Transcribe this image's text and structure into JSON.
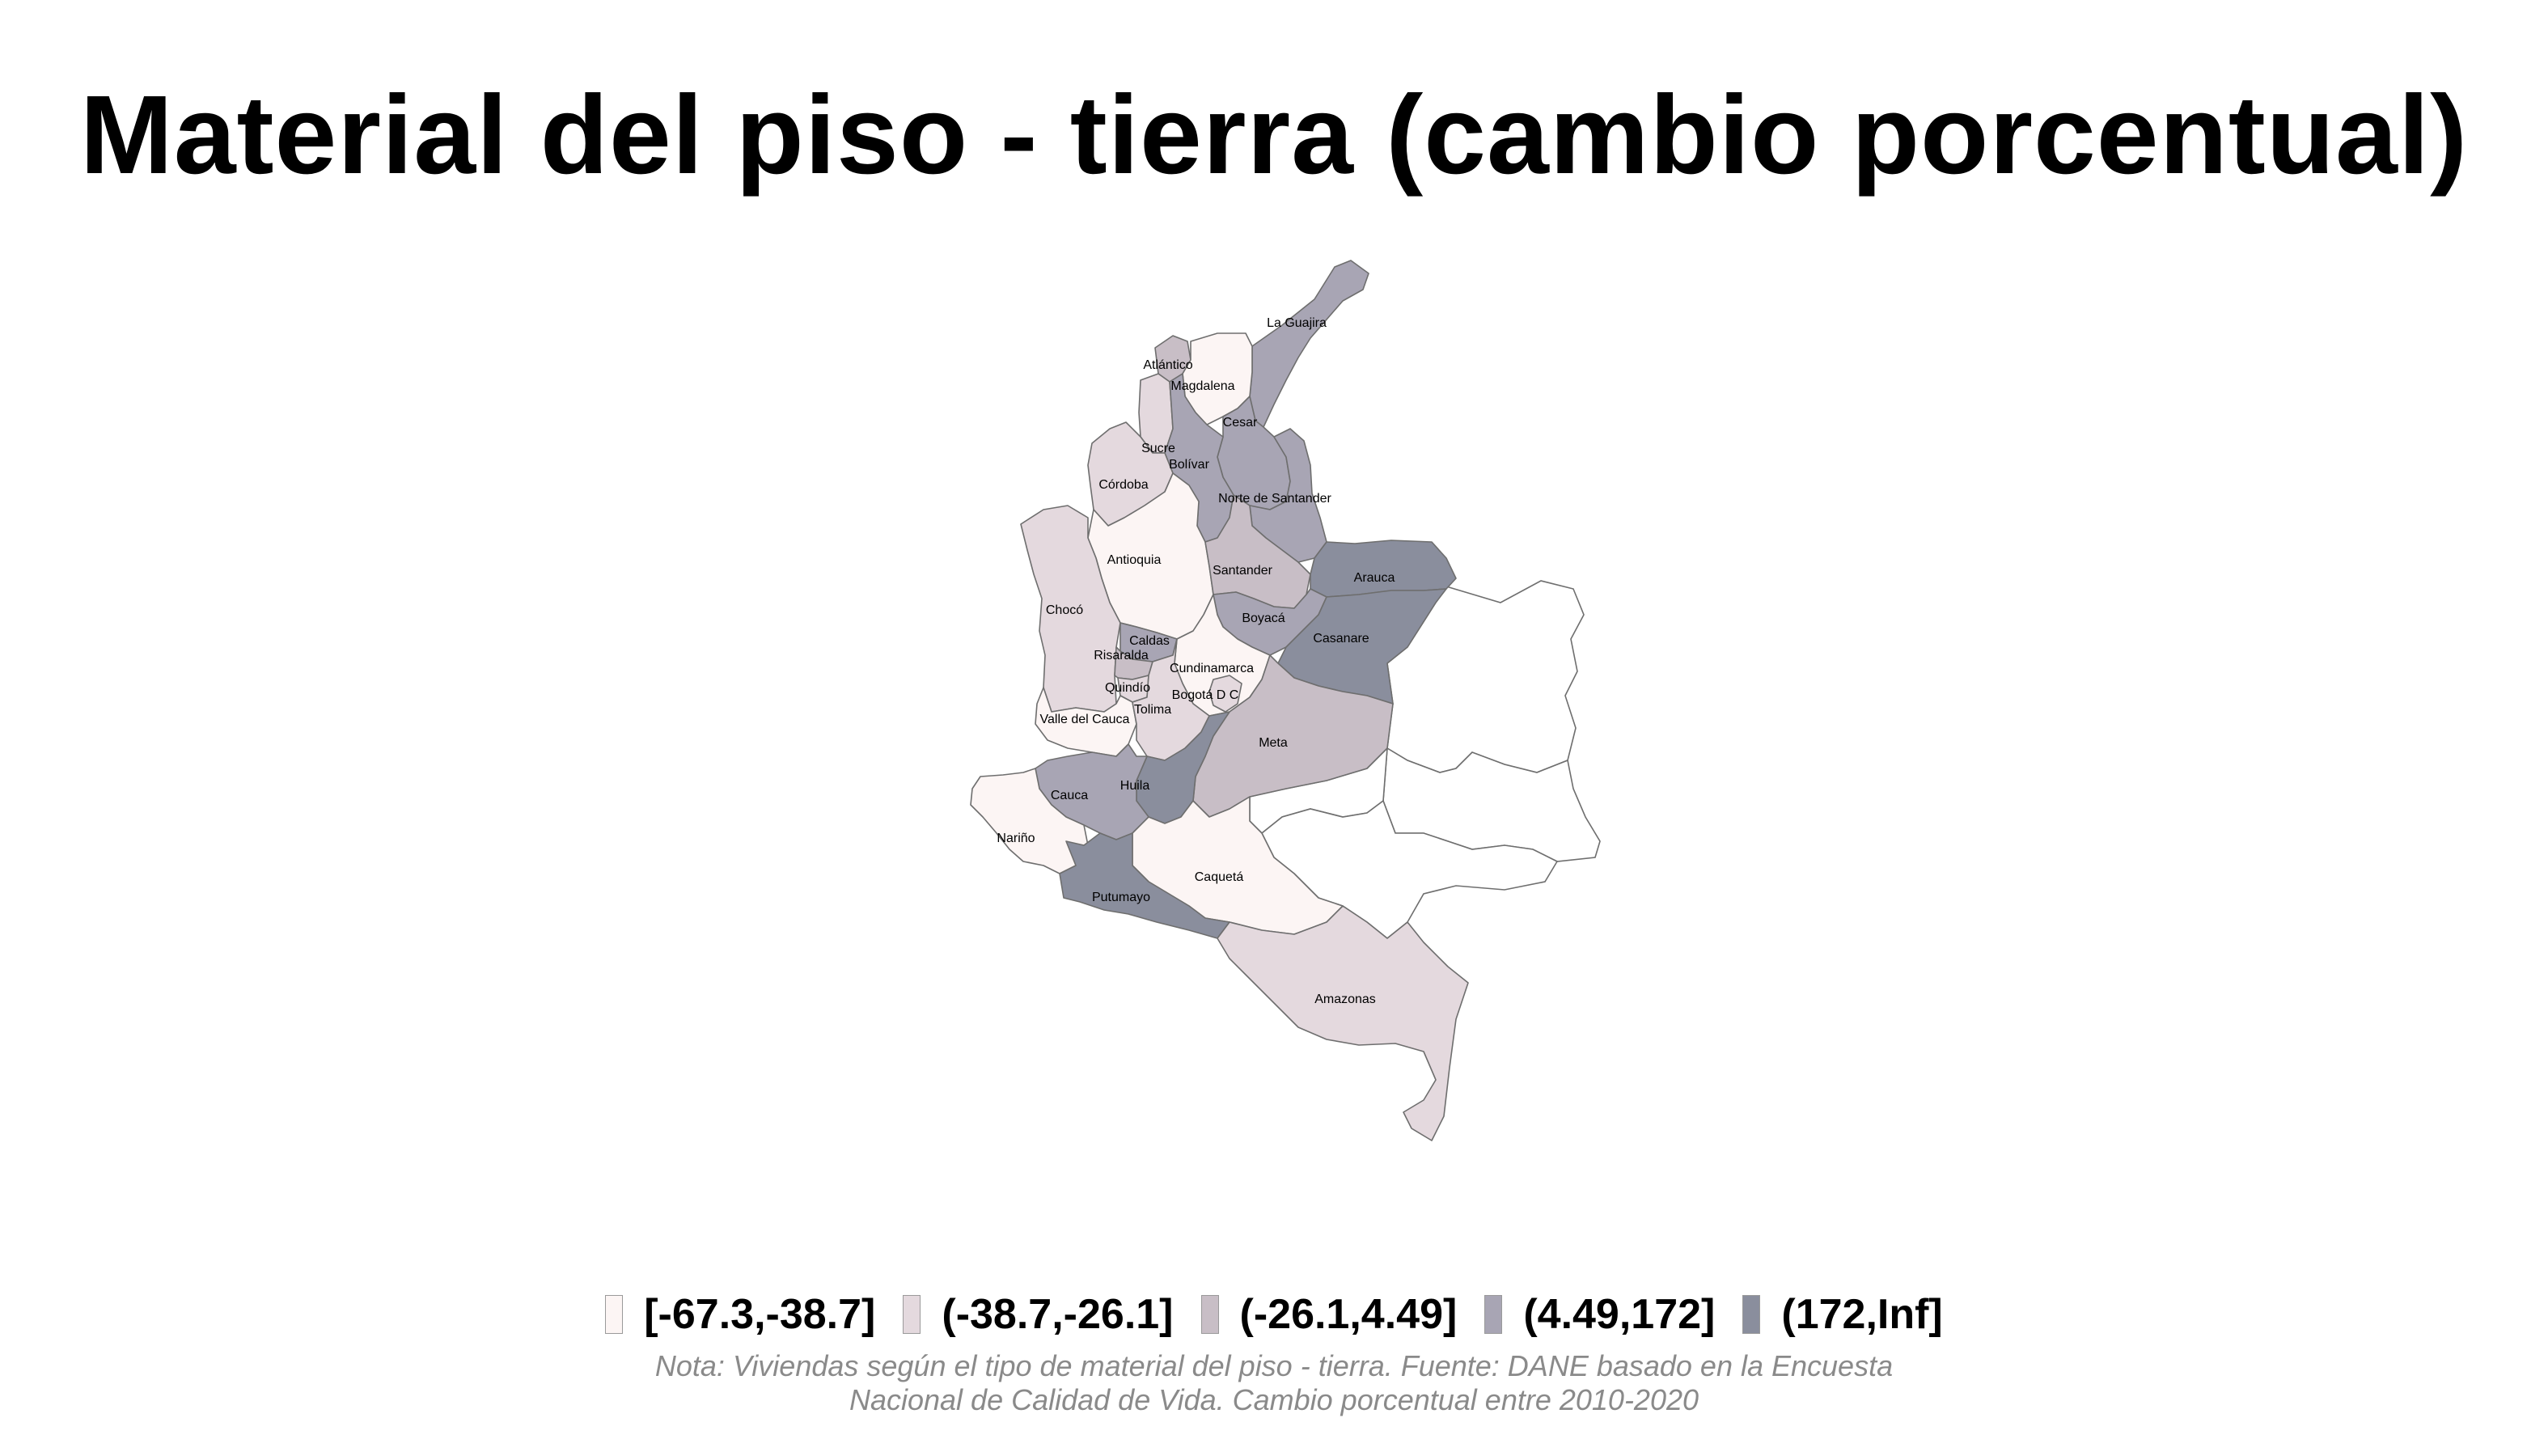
{
  "title": "Material del piso - tierra (cambio porcentual)",
  "colors": {
    "class1": "#fcf5f4",
    "class2": "#e4d9de",
    "class3": "#c8bec6",
    "class4": "#a8a5b4",
    "class5": "#8a8e9d",
    "border": "#6e6e6e"
  },
  "legend": [
    {
      "label": "[-67.3,-38.7]",
      "class": "class1"
    },
    {
      "label": "(-38.7,-26.1]",
      "class": "class2"
    },
    {
      "label": "(-26.1,4.49]",
      "class": "class3"
    },
    {
      "label": "(4.49,172]",
      "class": "class4"
    },
    {
      "label": "(172,Inf]",
      "class": "class5"
    }
  ],
  "departments": [
    {
      "name": "La Guajira",
      "class": "class4"
    },
    {
      "name": "Atlántico",
      "class": "class3"
    },
    {
      "name": "Magdalena",
      "class": "class1"
    },
    {
      "name": "Cesar",
      "class": "class4"
    },
    {
      "name": "Sucre",
      "class": "class2"
    },
    {
      "name": "Bolívar",
      "class": "class4"
    },
    {
      "name": "Córdoba",
      "class": "class2"
    },
    {
      "name": "Norte de Santander",
      "class": "class4"
    },
    {
      "name": "Antioquia",
      "class": "class1"
    },
    {
      "name": "Santander",
      "class": "class3"
    },
    {
      "name": "Arauca",
      "class": "class5"
    },
    {
      "name": "Chocó",
      "class": "class2"
    },
    {
      "name": "Boyacá",
      "class": "class4"
    },
    {
      "name": "Casanare",
      "class": "class5"
    },
    {
      "name": "Caldas",
      "class": "class4"
    },
    {
      "name": "Risaralda",
      "class": "class3"
    },
    {
      "name": "Cundinamarca",
      "class": "class1"
    },
    {
      "name": "Quindío",
      "class": "class2"
    },
    {
      "name": "Bogotá D C",
      "class": "class2"
    },
    {
      "name": "Valle del Cauca",
      "class": "class1"
    },
    {
      "name": "Tolima",
      "class": "class2"
    },
    {
      "name": "Meta",
      "class": "class3"
    },
    {
      "name": "Huila",
      "class": "class5"
    },
    {
      "name": "Cauca",
      "class": "class4"
    },
    {
      "name": "Nariño",
      "class": "class1"
    },
    {
      "name": "Caquetá",
      "class": "class1"
    },
    {
      "name": "Putumayo",
      "class": "class5"
    },
    {
      "name": "Amazonas",
      "class": "class2"
    }
  ],
  "note": {
    "line1": "Nota: Viviendas según el tipo de material del piso - tierra. Fuente: DANE basado en la Encuesta",
    "line2": "Nacional de Calidad de Vida. Cambio porcentual entre 2010-2020"
  }
}
